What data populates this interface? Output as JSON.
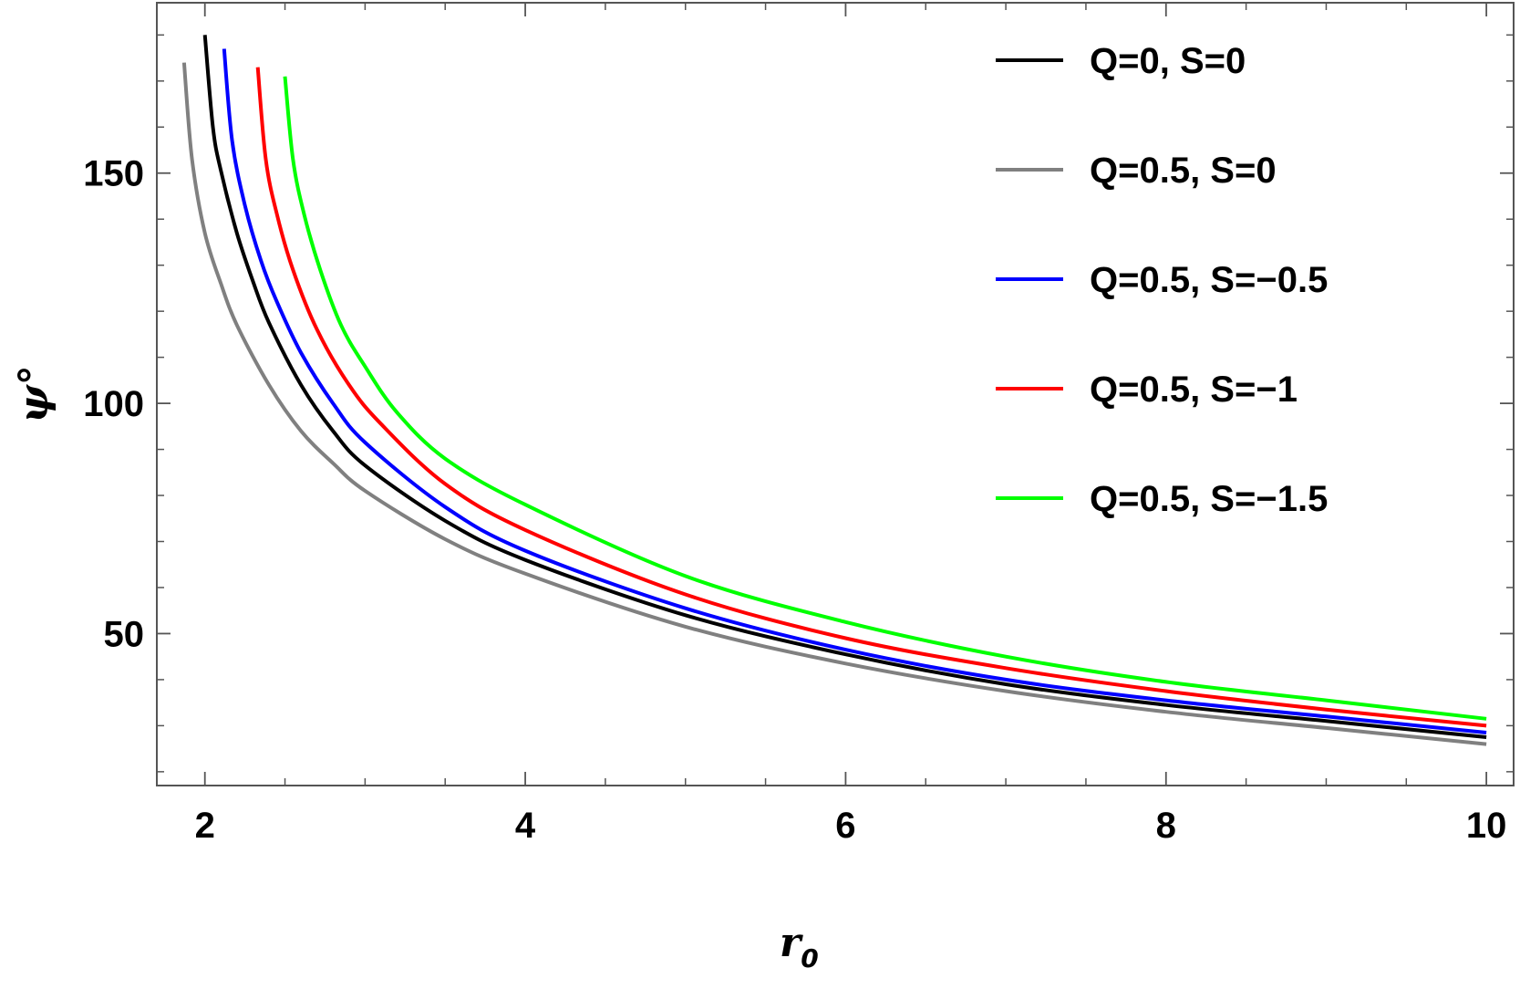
{
  "chart_data": {
    "type": "line",
    "xlabel": "r",
    "xlabel_subscript": "0",
    "ylabel": "ψ°",
    "xlim": [
      1.7,
      10.17
    ],
    "ylim": [
      17,
      187
    ],
    "xticks": [
      2,
      4,
      6,
      8,
      10
    ],
    "yticks": [
      50,
      100,
      150
    ],
    "grid": false,
    "legend_position": "top-right",
    "series": [
      {
        "name": "Q=0, S=0",
        "color": "#000000",
        "x": [
          2.0,
          2.05,
          2.1,
          2.2,
          2.3,
          2.4,
          2.6,
          2.8,
          3.0,
          3.5,
          4.0,
          5.0,
          6.0,
          7.0,
          8.0,
          9.0,
          10.0
        ],
        "y": [
          180,
          160,
          150.5,
          137,
          126.5,
          117.5,
          104,
          94,
          86.5,
          74.5,
          66,
          54,
          45.5,
          39,
          34.5,
          31,
          27.5
        ]
      },
      {
        "name": "Q=0.5, S=0",
        "color": "#808080",
        "x": [
          1.87,
          1.92,
          2.0,
          2.1,
          2.2,
          2.4,
          2.6,
          2.8,
          3.0,
          3.5,
          4.0,
          5.0,
          6.0,
          7.0,
          8.0,
          9.0,
          10.0
        ],
        "y": [
          174,
          153,
          137,
          126,
          117,
          104,
          94,
          87,
          81,
          70.5,
          63,
          51.5,
          43.5,
          37.5,
          33,
          29.5,
          26
        ]
      },
      {
        "name": "Q=0.5, S=−0.5",
        "color": "#0000ff",
        "x": [
          2.12,
          2.17,
          2.25,
          2.35,
          2.45,
          2.6,
          2.8,
          3.0,
          3.5,
          4.0,
          5.0,
          6.0,
          7.0,
          8.0,
          9.0,
          10.0
        ],
        "y": [
          177,
          157,
          143,
          131,
          122,
          111,
          100,
          91.5,
          77.5,
          68,
          55.5,
          46.5,
          40,
          35.5,
          32,
          28.5
        ]
      },
      {
        "name": "Q=0.5, S=−1",
        "color": "#ff0000",
        "x": [
          2.33,
          2.38,
          2.45,
          2.55,
          2.7,
          2.9,
          3.1,
          3.5,
          4.0,
          5.0,
          6.0,
          7.0,
          8.0,
          9.0,
          10.0
        ],
        "y": [
          173,
          153,
          141,
          129,
          116,
          104,
          95.5,
          82.5,
          72.5,
          58.5,
          49,
          42.5,
          37.5,
          33.5,
          30
        ]
      },
      {
        "name": "Q=0.5, S=−1.5",
        "color": "#00ff00",
        "x": [
          2.5,
          2.55,
          2.62,
          2.72,
          2.85,
          3.0,
          3.2,
          3.5,
          4.0,
          5.0,
          6.0,
          7.0,
          8.0,
          9.0,
          10.0
        ],
        "y": [
          171,
          153,
          141,
          129,
          117,
          108,
          98,
          88,
          78,
          62.5,
          52.5,
          45,
          39.5,
          35.5,
          31.5
        ]
      }
    ]
  }
}
